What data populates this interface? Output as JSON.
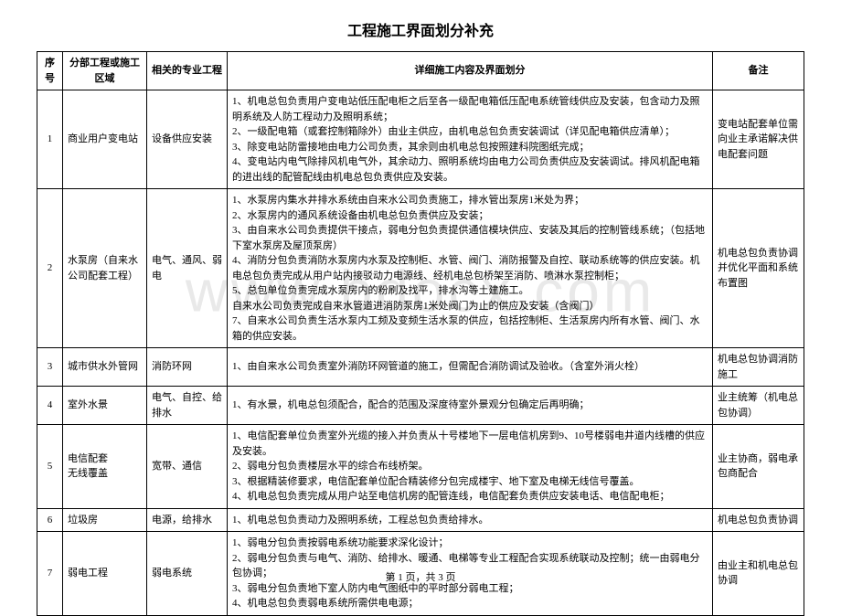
{
  "title": "工程施工界面划分补充",
  "watermark": "www.bdocx.com",
  "columns": [
    "序号",
    "分部工程或施工区域",
    "相关的专业工程",
    "详细施工内容及界面划分",
    "备注"
  ],
  "rows": [
    {
      "seq": "1",
      "area": "商业用户变电站",
      "prof": "设备供应安装",
      "detail": "1、机电总包负责用户变电站低压配电柜之后至各一级配电箱低压配电系统管线供应及安装，包含动力及照明系统及人防工程动力及照明系统；\n2、一级配电箱（或套控制箱除外）由业主供应，由机电总包负责安装调试（详见配电箱供应清单）；\n3、除变电站防雷接地由电力公司负责，其余则由机电总包按照建科院图纸完成；\n4、变电站内电气除排风机电气外，其余动力、照明系统均由电力公司负责供应及安装调试。排风机配电箱的进出线的配管配线由机电总包负责供应及安装。",
      "note": "变电站配套单位需向业主承诺解决供电配套问题"
    },
    {
      "seq": "2",
      "area": "水泵房（自来水公司配套工程）",
      "prof": "电气、通风、弱电",
      "detail": "1、水泵房内集水井排水系统由自来水公司负责施工，排水管出泵房1米处为界；\n2、水泵房内的通风系统设备由机电总包负责供应及安装；\n3、由自来水公司负责提供干接点，弱电分包负责提供通信模块供应、安装及其后的控制管线系统；（包括地下室水泵房及屋顶泵房）\n4、消防分包负责消防水泵房内水泵及控制柜、水管、阀门、消防报警及自控、联动系统等的供应安装。机电总包负责完成从用户站内接驳动力电源线、经机电总包桥架至消防、喷淋水泵控制柜；\n5、总包单位负责完成水泵房内的粉刷及找平，排水沟等土建施工。\n自来水公司负责完成自来水管道进消防泵房1米处阀门为止的供应及安装（含阀门）\n7、自来水公司负责生活水泵内工频及变频生活水泵的供应，包括控制柜、生活泵房内所有水管、阀门、水箱的供应安装。",
      "note": "机电总包负责协调并优化平面和系统布置图"
    },
    {
      "seq": "3",
      "area": "城市供水外管网",
      "prof": "消防环网",
      "detail": "1、由自来水公司负责室外消防环网管道的施工，但需配合消防调试及验收。（含室外消火栓）",
      "note": "机电总包协调消防施工"
    },
    {
      "seq": "4",
      "area": "室外水景",
      "prof": "电气、自控、给排水",
      "detail": "1、有水景，机电总包须配合，配合的范围及深度待室外景观分包确定后再明确；",
      "note": "业主统筹（机电总包协调）"
    },
    {
      "seq": "5",
      "area": "电信配套\n无线覆盖",
      "prof": "宽带、通信",
      "detail": "1、电信配套单位负责室外光缆的接入并负责从十号楼地下一层电信机房到9、10号楼弱电井道内线槽的供应及安装。\n2、弱电分包负责楼层水平的综合布线桥架。\n3、根据精装修要求，电信配套单位配合精装修分包完成楼宇、地下室及电梯无线信号覆盖。\n4、机电总包负责完成从用户站至电信机房的配管连线，电信配套负责供应安装电话、电信配电柜；",
      "note": "业主协商，弱电承包商配合"
    },
    {
      "seq": "6",
      "area": "垃圾房",
      "prof": "电源，给排水",
      "detail": "1、机电总包负责动力及照明系统，工程总包负责给排水。",
      "note": "机电总包负责协调"
    },
    {
      "seq": "7",
      "area": "弱电工程",
      "prof": "弱电系统",
      "detail": "1、弱电分包负责按弱电系统功能要求深化设计；\n2、弱电分包负责与电气、消防、给排水、暖通、电梯等专业工程配合实现系统联动及控制；统一由弱电分包协调；\n3、弱电分包负责地下室人防内电气图纸中的平时部分弱电工程；\n4、机电总包负责弱电系统所需供电电源；",
      "note": "由业主和机电总包协调"
    }
  ],
  "footer": "第 1 页，共 3 页"
}
